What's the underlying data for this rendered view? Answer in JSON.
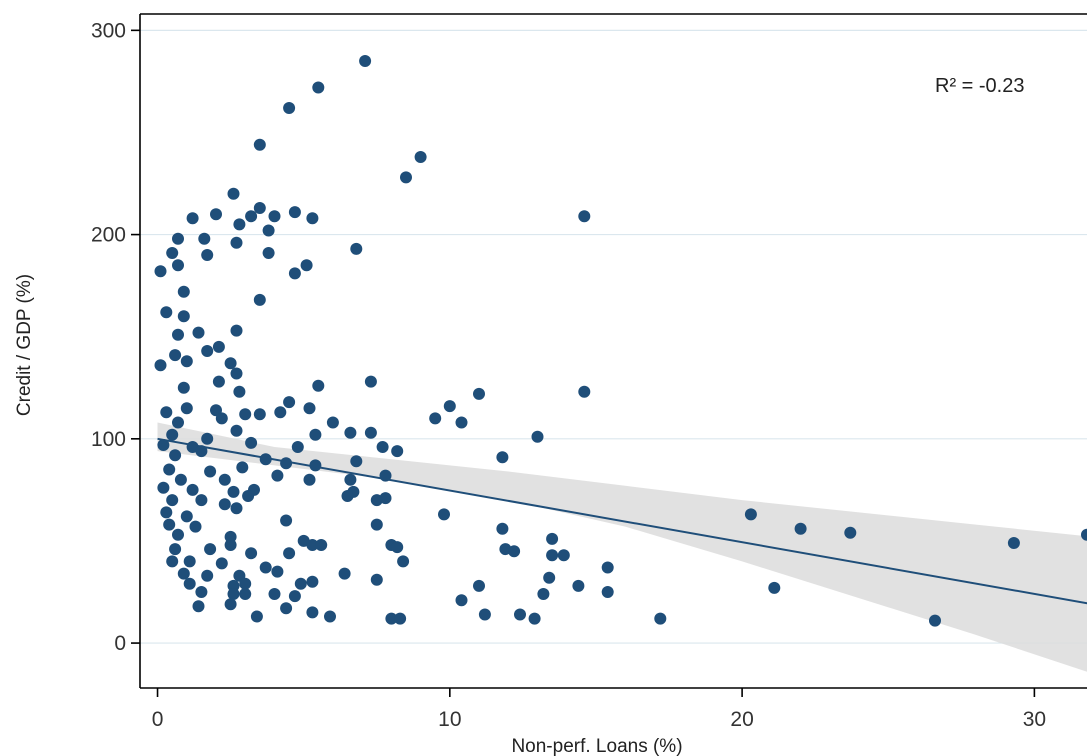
{
  "chart_data": {
    "type": "scatter",
    "title": "",
    "xlabel": "Non-perf. Loans (%)",
    "ylabel": "Credit / GDP (%)",
    "xlim": [
      -0.6,
      31.8
    ],
    "ylim": [
      -22,
      308
    ],
    "xticks": [
      0,
      10,
      20,
      30
    ],
    "yticks": [
      0,
      100,
      200,
      300
    ],
    "xtick_labels": [
      "0",
      "10",
      "20",
      "30"
    ],
    "ytick_labels": [
      "0",
      "100",
      "200",
      "300"
    ],
    "grid": "horizontal",
    "annotation": "R² = -0.23",
    "colors": {
      "points": "#1f4e79",
      "fit_line": "#1f4e79",
      "ci_band": "#dcdcdc",
      "grid": "#dbe7ee"
    },
    "fit": {
      "x": [
        0,
        32
      ],
      "y": [
        100,
        19
      ]
    },
    "ci_band": {
      "x": [
        0,
        4,
        8,
        12,
        16,
        20,
        24,
        28,
        32
      ],
      "lower": [
        94,
        87,
        80,
        70,
        57,
        40,
        22,
        4,
        -15
      ],
      "upper": [
        108,
        96,
        90,
        84,
        77,
        70,
        64,
        58,
        52
      ]
    },
    "points": [
      [
        7.1,
        285
      ],
      [
        5.5,
        272
      ],
      [
        4.5,
        262
      ],
      [
        3.5,
        244
      ],
      [
        9.0,
        238
      ],
      [
        8.5,
        228
      ],
      [
        2.6,
        220
      ],
      [
        3.5,
        213
      ],
      [
        4.7,
        211
      ],
      [
        2.0,
        210
      ],
      [
        3.2,
        209
      ],
      [
        4.0,
        209
      ],
      [
        5.3,
        208
      ],
      [
        14.6,
        209
      ],
      [
        1.2,
        208
      ],
      [
        2.8,
        205
      ],
      [
        3.8,
        202
      ],
      [
        0.7,
        198
      ],
      [
        1.6,
        198
      ],
      [
        2.7,
        196
      ],
      [
        0.5,
        191
      ],
      [
        1.7,
        190
      ],
      [
        3.8,
        191
      ],
      [
        6.8,
        193
      ],
      [
        5.1,
        185
      ],
      [
        0.7,
        185
      ],
      [
        4.7,
        181
      ],
      [
        0.1,
        182
      ],
      [
        0.9,
        172
      ],
      [
        0.3,
        162
      ],
      [
        0.9,
        160
      ],
      [
        3.5,
        168
      ],
      [
        0.7,
        151
      ],
      [
        1.4,
        152
      ],
      [
        2.7,
        153
      ],
      [
        0.6,
        141
      ],
      [
        1.7,
        143
      ],
      [
        2.1,
        145
      ],
      [
        0.1,
        136
      ],
      [
        1.0,
        138
      ],
      [
        2.5,
        137
      ],
      [
        2.7,
        132
      ],
      [
        2.1,
        128
      ],
      [
        0.9,
        125
      ],
      [
        2.8,
        123
      ],
      [
        5.5,
        126
      ],
      [
        7.3,
        128
      ],
      [
        14.6,
        123
      ],
      [
        11.0,
        122
      ],
      [
        4.5,
        118
      ],
      [
        0.3,
        113
      ],
      [
        1.0,
        115
      ],
      [
        2.0,
        114
      ],
      [
        3.5,
        112
      ],
      [
        4.2,
        113
      ],
      [
        5.2,
        115
      ],
      [
        0.7,
        108
      ],
      [
        2.2,
        110
      ],
      [
        3.0,
        112
      ],
      [
        6.0,
        108
      ],
      [
        10.0,
        116
      ],
      [
        9.5,
        110
      ],
      [
        10.4,
        108
      ],
      [
        0.5,
        102
      ],
      [
        1.7,
        100
      ],
      [
        2.7,
        104
      ],
      [
        5.4,
        102
      ],
      [
        6.6,
        103
      ],
      [
        7.3,
        103
      ],
      [
        0.2,
        97
      ],
      [
        1.2,
        96
      ],
      [
        3.2,
        98
      ],
      [
        4.8,
        96
      ],
      [
        7.7,
        96
      ],
      [
        8.2,
        94
      ],
      [
        13.0,
        101
      ],
      [
        0.6,
        92
      ],
      [
        1.5,
        94
      ],
      [
        3.7,
        90
      ],
      [
        4.4,
        88
      ],
      [
        6.8,
        89
      ],
      [
        11.8,
        91
      ],
      [
        0.4,
        85
      ],
      [
        1.8,
        84
      ],
      [
        2.9,
        86
      ],
      [
        5.4,
        87
      ],
      [
        0.8,
        80
      ],
      [
        2.3,
        80
      ],
      [
        4.1,
        82
      ],
      [
        5.2,
        80
      ],
      [
        6.6,
        80
      ],
      [
        7.8,
        82
      ],
      [
        0.2,
        76
      ],
      [
        1.2,
        75
      ],
      [
        2.6,
        74
      ],
      [
        3.3,
        75
      ],
      [
        6.7,
        74
      ],
      [
        0.5,
        70
      ],
      [
        1.5,
        70
      ],
      [
        2.3,
        68
      ],
      [
        3.1,
        72
      ],
      [
        6.5,
        72
      ],
      [
        7.5,
        70
      ],
      [
        7.8,
        71
      ],
      [
        0.3,
        64
      ],
      [
        1.0,
        62
      ],
      [
        2.7,
        66
      ],
      [
        9.8,
        63
      ],
      [
        0.4,
        58
      ],
      [
        1.3,
        57
      ],
      [
        4.4,
        60
      ],
      [
        7.5,
        58
      ],
      [
        0.7,
        53
      ],
      [
        2.5,
        52
      ],
      [
        5.0,
        50
      ],
      [
        8.0,
        48
      ],
      [
        11.8,
        56
      ],
      [
        13.5,
        51
      ],
      [
        20.3,
        63
      ],
      [
        22.0,
        56
      ],
      [
        23.7,
        54
      ],
      [
        31.8,
        53
      ],
      [
        0.6,
        46
      ],
      [
        1.8,
        46
      ],
      [
        2.5,
        48
      ],
      [
        3.2,
        44
      ],
      [
        4.5,
        44
      ],
      [
        5.3,
        48
      ],
      [
        5.6,
        48
      ],
      [
        8.2,
        47
      ],
      [
        11.9,
        46
      ],
      [
        12.2,
        45
      ],
      [
        13.5,
        43
      ],
      [
        13.9,
        43
      ],
      [
        0.5,
        40
      ],
      [
        1.1,
        40
      ],
      [
        2.2,
        39
      ],
      [
        3.7,
        37
      ],
      [
        8.4,
        40
      ],
      [
        15.4,
        37
      ],
      [
        29.3,
        49
      ],
      [
        0.9,
        34
      ],
      [
        1.7,
        33
      ],
      [
        2.8,
        33
      ],
      [
        4.1,
        35
      ],
      [
        6.4,
        34
      ],
      [
        7.5,
        31
      ],
      [
        13.4,
        32
      ],
      [
        1.1,
        29
      ],
      [
        2.6,
        28
      ],
      [
        3.0,
        29
      ],
      [
        4.9,
        29
      ],
      [
        5.3,
        30
      ],
      [
        11.0,
        28
      ],
      [
        14.4,
        28
      ],
      [
        15.4,
        25
      ],
      [
        21.1,
        27
      ],
      [
        1.5,
        25
      ],
      [
        2.6,
        24
      ],
      [
        3.0,
        24
      ],
      [
        4.0,
        24
      ],
      [
        4.7,
        23
      ],
      [
        10.4,
        21
      ],
      [
        13.2,
        24
      ],
      [
        1.4,
        18
      ],
      [
        2.5,
        19
      ],
      [
        4.4,
        17
      ],
      [
        3.4,
        13
      ],
      [
        5.3,
        15
      ],
      [
        5.9,
        13
      ],
      [
        8.0,
        12
      ],
      [
        8.3,
        12
      ],
      [
        11.2,
        14
      ],
      [
        12.4,
        14
      ],
      [
        12.9,
        12
      ],
      [
        17.2,
        12
      ],
      [
        26.6,
        11
      ]
    ]
  }
}
